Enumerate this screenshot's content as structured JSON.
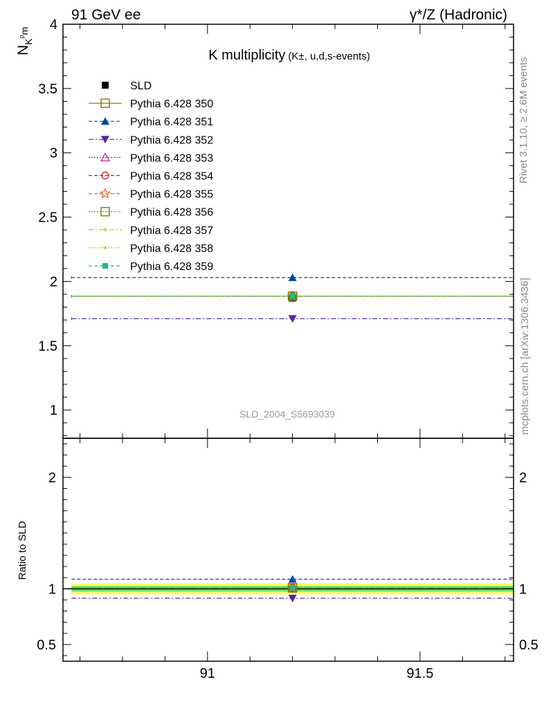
{
  "header": {
    "left_title": "91 GeV ee",
    "right_title": "γ*/Z (Hadronic)"
  },
  "side_text": {
    "rivet": "Rivet 3.1.10, ≥ 2.6M events",
    "mcplots": "mcplots.cern.ch [arXiv:1306.3436]"
  },
  "chart_data": [
    {
      "type": "scatter",
      "panel": "main",
      "title_main": "K multiplicity",
      "title_sub": "(K±, u,d,s-events)",
      "ylabel_main": "N",
      "ylabel_sub": "K",
      "ylabel_sup": "p",
      "ylabel_tail": "m",
      "analysis_label": "SLD_2004_S5693039",
      "x_range": [
        90.66,
        91.72
      ],
      "ylim": [
        0.78,
        4.0
      ],
      "x_ticks": [
        "91",
        "91.5"
      ],
      "x_tick_values": [
        91.0,
        91.5
      ],
      "y_ticks": [
        "1",
        "1.5",
        "2",
        "2.5",
        "3",
        "3.5",
        "4"
      ],
      "y_tick_values": [
        1,
        1.5,
        2,
        2.5,
        3,
        3.5,
        4
      ],
      "legend_position": "top-left",
      "bin": [
        90.68,
        91.72
      ],
      "x_point": 91.2,
      "series": [
        {
          "name": "SLD",
          "y": 1.87,
          "err": 0.02,
          "color": "#000000",
          "marker": "filled-square",
          "line": "none"
        },
        {
          "name": "Pythia 6.428 350",
          "y": 1.885,
          "color": "#808000",
          "marker": "open-square",
          "line": "solid"
        },
        {
          "name": "Pythia 6.428 351",
          "y": 2.03,
          "color": "#0044aa",
          "marker": "filled-triangle-up",
          "line": "dashed"
        },
        {
          "name": "Pythia 6.428 352",
          "y": 1.71,
          "color": "#5522aa",
          "marker": "filled-triangle-down",
          "line": "dashdot"
        },
        {
          "name": "Pythia 6.428 353",
          "y": 1.885,
          "color": "#bb2288",
          "marker": "open-triangle-up",
          "line": "dotted"
        },
        {
          "name": "Pythia 6.428 354",
          "y": 1.885,
          "color": "#dd1111",
          "marker": "open-circle",
          "line": "dashed"
        },
        {
          "name": "Pythia 6.428 355",
          "y": 1.885,
          "color": "#ee6611",
          "marker": "open-star",
          "line": "dashed"
        },
        {
          "name": "Pythia 6.428 356",
          "y": 1.885,
          "color": "#778811",
          "marker": "open-square",
          "line": "dotted"
        },
        {
          "name": "Pythia 6.428 357",
          "y": 1.885,
          "color": "#ccbb00",
          "marker": "small-cross",
          "line": "dashdot"
        },
        {
          "name": "Pythia 6.428 358",
          "y": 1.885,
          "color": "#aacc00",
          "marker": "small-dot",
          "line": "dotted"
        },
        {
          "name": "Pythia 6.428 359",
          "y": 1.885,
          "color": "#22bb88",
          "marker": "filled-square-small",
          "line": "dashed"
        }
      ]
    },
    {
      "type": "scatter",
      "panel": "ratio",
      "ylabel": "Ratio to SLD",
      "x_range": [
        90.66,
        91.72
      ],
      "ylim": [
        0.35,
        2.35
      ],
      "y_ticks": [
        "0.5",
        "1",
        "2"
      ],
      "y_tick_values": [
        0.5,
        1,
        2
      ],
      "bands": {
        "green_halfwidth": 0.025,
        "yellow_halfwidth": 0.05,
        "green_color": "#66dd66",
        "yellow_color": "#ffff66"
      },
      "series": [
        {
          "name": "Pythia 6.428 350",
          "y": 1.008
        },
        {
          "name": "Pythia 6.428 351",
          "y": 1.086
        },
        {
          "name": "Pythia 6.428 352",
          "y": 0.915
        },
        {
          "name": "Pythia 6.428 353",
          "y": 1.008
        },
        {
          "name": "Pythia 6.428 354",
          "y": 1.008
        },
        {
          "name": "Pythia 6.428 355",
          "y": 1.008
        },
        {
          "name": "Pythia 6.428 356",
          "y": 1.008
        },
        {
          "name": "Pythia 6.428 357",
          "y": 1.008
        },
        {
          "name": "Pythia 6.428 358",
          "y": 1.008
        },
        {
          "name": "Pythia 6.428 359",
          "y": 1.008
        }
      ]
    }
  ]
}
